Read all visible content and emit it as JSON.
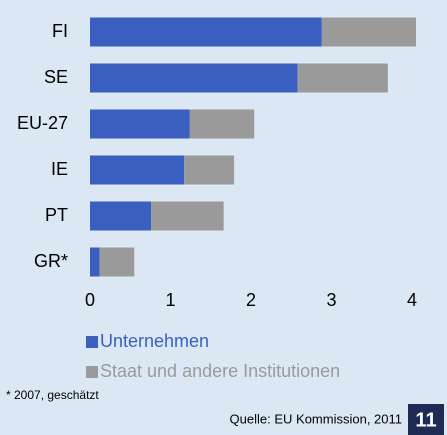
{
  "chart_data": {
    "type": "stacked-bar-horizontal",
    "categories": [
      "FI",
      "SE",
      "EU-27",
      "IE",
      "PT",
      "GR*"
    ],
    "series": [
      {
        "name": "Unternehmen",
        "color": "#3b5fc0",
        "values": [
          2.88,
          2.58,
          1.24,
          1.17,
          0.76,
          0.12
        ]
      },
      {
        "name": "Staat und andere Institutionen",
        "color": "#9a9a9a",
        "values": [
          1.17,
          1.12,
          0.8,
          0.62,
          0.9,
          0.43
        ]
      }
    ],
    "xlim": [
      0,
      4
    ],
    "xticks": [
      0,
      1,
      2,
      3,
      4
    ],
    "grid": false,
    "footnote": "* 2007, geschätzt",
    "source": "Quelle: EU Kommission, 2011",
    "page_number": "11"
  }
}
